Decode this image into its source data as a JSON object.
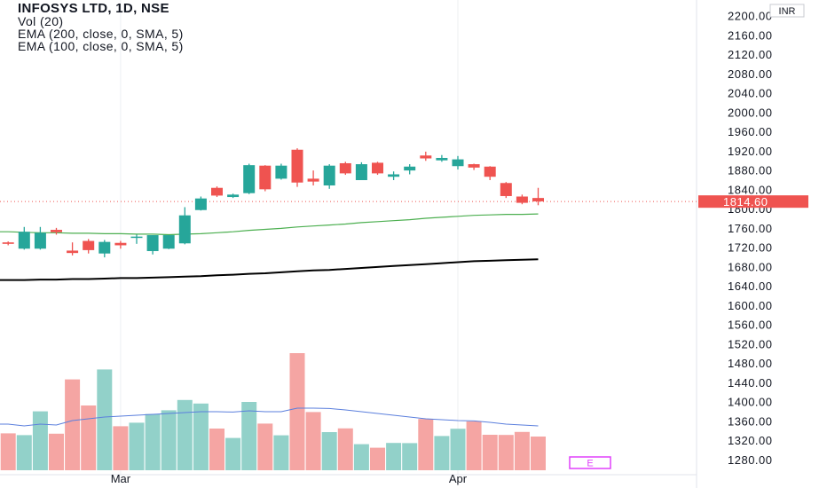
{
  "legend": {
    "title": "INFOSYS LTD, 1D, NSE",
    "lines": [
      "Vol (20)",
      "EMA (200, close, 0, SMA, 5)",
      "EMA (100, close, 0, SMA, 5)"
    ]
  },
  "currency_badge": "INR",
  "indicator_marker": "E",
  "colors": {
    "up": "#26a69a",
    "down": "#ef5350",
    "vol_up": "#92d1c9",
    "vol_down": "#f5a5a3",
    "ema_green": "#4caf50",
    "ema_black": "#000000",
    "vol_ma": "#5b7fdd",
    "last_price": "#ef5350",
    "marker": "#e040fb"
  },
  "chart_data": {
    "type": "candlestick",
    "symbol": "INFOSYS LTD",
    "interval": "1D",
    "exchange": "NSE",
    "currency": "INR",
    "y_axis": {
      "min": 1280,
      "max": 2200,
      "step": 40,
      "tick_labels": [
        "2200.00",
        "2160.00",
        "2120.00",
        "2080.00",
        "2040.00",
        "2000.00",
        "1960.00",
        "1920.00",
        "1880.00",
        "1840.00",
        "1800.00",
        "1760.00",
        "1720.00",
        "1680.00",
        "1640.00",
        "1600.00",
        "1560.00",
        "1520.00",
        "1480.00",
        "1440.00",
        "1400.00",
        "1360.00",
        "1320.00",
        "1280.00"
      ]
    },
    "x_axis": {
      "labels": [
        {
          "label": "Mar",
          "index": 7
        },
        {
          "label": "Apr",
          "index": 28
        }
      ]
    },
    "last_price": {
      "value": 1814.6,
      "label": "1814.60"
    },
    "candles": [
      {
        "o": 1730,
        "h": 1732,
        "l": 1724,
        "c": 1727
      },
      {
        "o": 1717,
        "h": 1762,
        "l": 1715,
        "c": 1752
      },
      {
        "o": 1717,
        "h": 1762,
        "l": 1715,
        "c": 1750
      },
      {
        "o": 1756,
        "h": 1760,
        "l": 1746,
        "c": 1751
      },
      {
        "o": 1713,
        "h": 1730,
        "l": 1703,
        "c": 1708
      },
      {
        "o": 1733,
        "h": 1737,
        "l": 1707,
        "c": 1714
      },
      {
        "o": 1707,
        "h": 1735,
        "l": 1699,
        "c": 1731
      },
      {
        "o": 1729,
        "h": 1733,
        "l": 1717,
        "c": 1724
      },
      {
        "o": 1741,
        "h": 1746,
        "l": 1727,
        "c": 1742
      },
      {
        "o": 1712,
        "h": 1745,
        "l": 1705,
        "c": 1745
      },
      {
        "o": 1717,
        "h": 1745,
        "l": 1716,
        "c": 1745
      },
      {
        "o": 1728,
        "h": 1803,
        "l": 1726,
        "c": 1786
      },
      {
        "o": 1797,
        "h": 1825,
        "l": 1796,
        "c": 1821
      },
      {
        "o": 1843,
        "h": 1846,
        "l": 1824,
        "c": 1827
      },
      {
        "o": 1824,
        "h": 1831,
        "l": 1822,
        "c": 1829
      },
      {
        "o": 1832,
        "h": 1893,
        "l": 1830,
        "c": 1890
      },
      {
        "o": 1889,
        "h": 1890,
        "l": 1836,
        "c": 1840
      },
      {
        "o": 1862,
        "h": 1893,
        "l": 1860,
        "c": 1889
      },
      {
        "o": 1922,
        "h": 1925,
        "l": 1845,
        "c": 1854
      },
      {
        "o": 1862,
        "h": 1879,
        "l": 1848,
        "c": 1856
      },
      {
        "o": 1848,
        "h": 1892,
        "l": 1841,
        "c": 1889
      },
      {
        "o": 1894,
        "h": 1897,
        "l": 1870,
        "c": 1873
      },
      {
        "o": 1859,
        "h": 1896,
        "l": 1859,
        "c": 1892
      },
      {
        "o": 1895,
        "h": 1897,
        "l": 1870,
        "c": 1873
      },
      {
        "o": 1866,
        "h": 1877,
        "l": 1859,
        "c": 1871
      },
      {
        "o": 1879,
        "h": 1892,
        "l": 1871,
        "c": 1887
      },
      {
        "o": 1910,
        "h": 1918,
        "l": 1899,
        "c": 1904
      },
      {
        "o": 1900,
        "h": 1911,
        "l": 1897,
        "c": 1905
      },
      {
        "o": 1888,
        "h": 1909,
        "l": 1881,
        "c": 1902
      },
      {
        "o": 1892,
        "h": 1893,
        "l": 1880,
        "c": 1885
      },
      {
        "o": 1887,
        "h": 1888,
        "l": 1859,
        "c": 1866
      },
      {
        "o": 1853,
        "h": 1855,
        "l": 1822,
        "c": 1826
      },
      {
        "o": 1825,
        "h": 1829,
        "l": 1809,
        "c": 1812
      },
      {
        "o": 1822,
        "h": 1843,
        "l": 1807,
        "c": 1815
      }
    ],
    "ema_100": {
      "name": "EMA (100, close, 0, SMA, 5)",
      "values": [
        1752,
        1751,
        1750,
        1750,
        1749,
        1749,
        1748,
        1748,
        1747,
        1747,
        1746,
        1747,
        1748,
        1750,
        1752,
        1755,
        1757,
        1759,
        1762,
        1764,
        1766,
        1768,
        1771,
        1773,
        1775,
        1777,
        1780,
        1782,
        1784,
        1786,
        1787,
        1788,
        1788,
        1789
      ]
    },
    "ema_200": {
      "name": "EMA (200, close, 0, SMA, 5)",
      "values": [
        1652,
        1652,
        1653,
        1653,
        1654,
        1654,
        1655,
        1656,
        1656,
        1657,
        1658,
        1659,
        1660,
        1662,
        1663,
        1665,
        1666,
        1668,
        1670,
        1672,
        1673,
        1675,
        1677,
        1679,
        1681,
        1683,
        1685,
        1687,
        1689,
        1691,
        1692,
        1693,
        1694,
        1695
      ]
    },
    "volume": {
      "name": "Vol (20)",
      "values": [
        2.08,
        1.98,
        3.32,
        2.06,
        5.12,
        3.65,
        5.68,
        2.48,
        2.68,
        3.17,
        3.38,
        3.96,
        3.76,
        2.35,
        1.82,
        3.85,
        2.63,
        1.97,
        6.6,
        3.28,
        2.15,
        2.36,
        1.47,
        1.27,
        1.54,
        1.53,
        2.89,
        1.93,
        2.34,
        2.75,
        2.0,
        1.99,
        2.16,
        1.9
      ],
      "ma": [
        2.6,
        2.5,
        2.6,
        2.55,
        2.8,
        2.9,
        3.0,
        3.05,
        3.1,
        3.15,
        3.2,
        3.25,
        3.3,
        3.3,
        3.28,
        3.35,
        3.3,
        3.3,
        3.5,
        3.5,
        3.48,
        3.4,
        3.3,
        3.2,
        3.1,
        3.0,
        2.9,
        2.85,
        2.8,
        2.78,
        2.7,
        2.6,
        2.55,
        2.5
      ]
    }
  }
}
